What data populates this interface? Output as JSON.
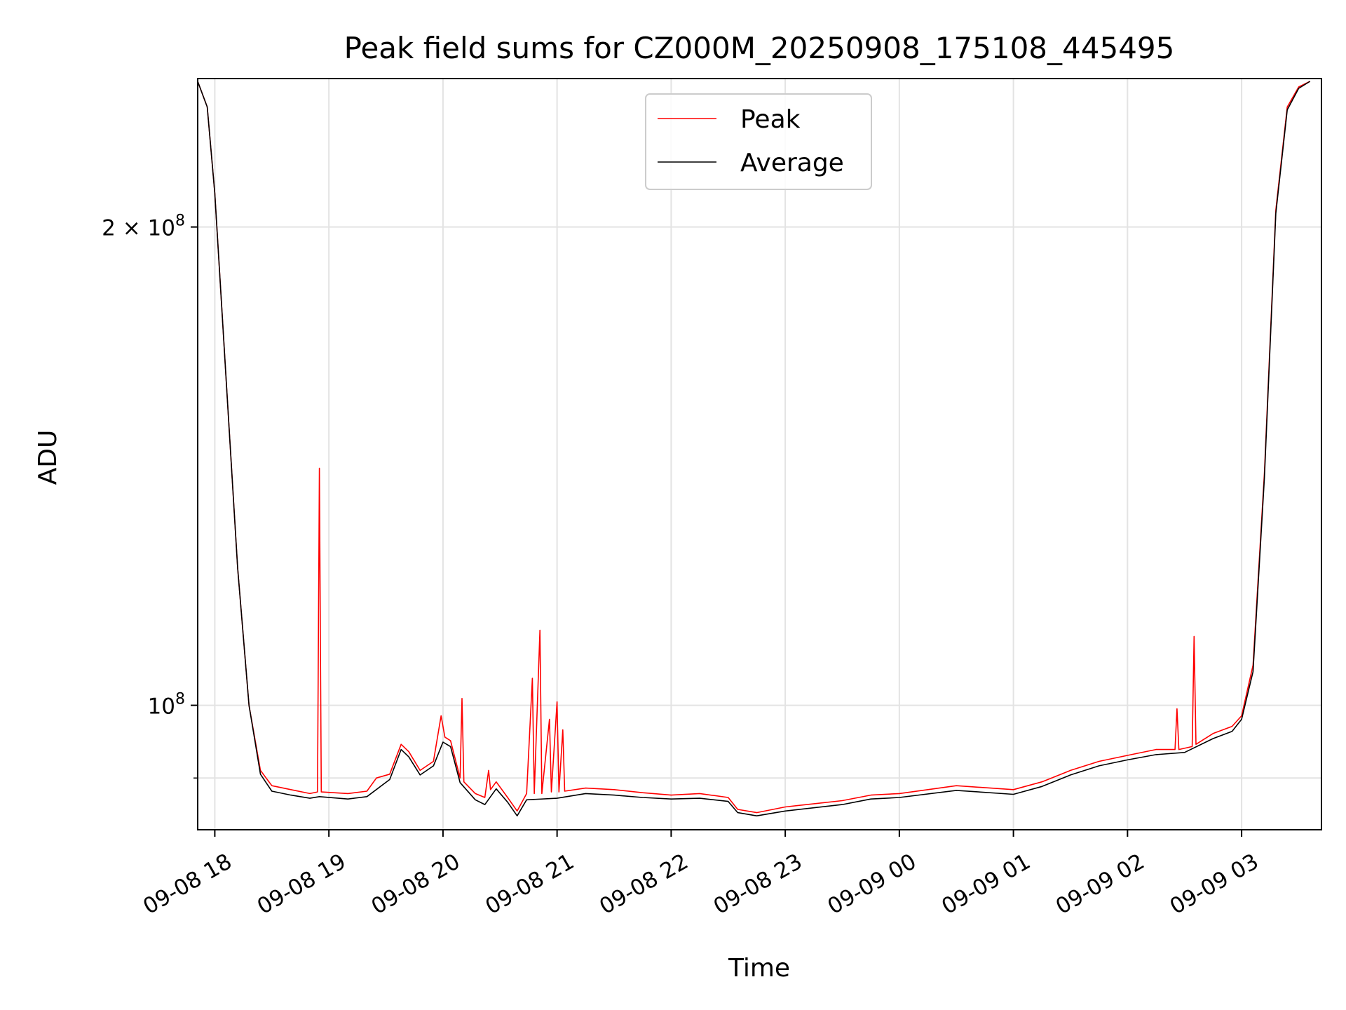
{
  "chart_data": {
    "type": "line",
    "title": "Peak field sums for CZ000M_20250908_175108_445495",
    "xlabel": "Time",
    "ylabel": "ADU",
    "y_scale": "log",
    "x_range": [
      "2025-09-08 17:51",
      "2025-09-09 03:42"
    ],
    "ylim": [
      83500000,
      248000000
    ],
    "grid": true,
    "legend_position": "top-center",
    "x_ticks": [
      {
        "t": "2025-09-08 18:00",
        "label": "09-08 18"
      },
      {
        "t": "2025-09-08 19:00",
        "label": "09-08 19"
      },
      {
        "t": "2025-09-08 20:00",
        "label": "09-08 20"
      },
      {
        "t": "2025-09-08 21:00",
        "label": "09-08 21"
      },
      {
        "t": "2025-09-08 22:00",
        "label": "09-08 22"
      },
      {
        "t": "2025-09-08 23:00",
        "label": "09-08 23"
      },
      {
        "t": "2025-09-09 00:00",
        "label": "09-09 00"
      },
      {
        "t": "2025-09-09 01:00",
        "label": "09-09 01"
      },
      {
        "t": "2025-09-09 02:00",
        "label": "09-09 02"
      },
      {
        "t": "2025-09-09 03:00",
        "label": "09-09 03"
      }
    ],
    "y_ticks": [
      {
        "value": 200000000,
        "label": "2 × 10",
        "exp": "8"
      },
      {
        "value": 100000000,
        "label": "10",
        "exp": "8"
      }
    ],
    "y_minor_ticks": [
      90000000
    ],
    "series": [
      {
        "name": "Peak",
        "color": "#ff0000",
        "points": [
          [
            "2025-09-08 17:51",
            247000000
          ],
          [
            "2025-09-08 17:56",
            238000000
          ],
          [
            "2025-09-08 18:00",
            210000000
          ],
          [
            "2025-09-08 18:06",
            160000000
          ],
          [
            "2025-09-08 18:12",
            122000000
          ],
          [
            "2025-09-08 18:18",
            100000000
          ],
          [
            "2025-09-08 18:24",
            91000000
          ],
          [
            "2025-09-08 18:30",
            89000000
          ],
          [
            "2025-09-08 18:40",
            88500000
          ],
          [
            "2025-09-08 18:50",
            88000000
          ],
          [
            "2025-09-08 18:54",
            88200000
          ],
          [
            "2025-09-08 18:55",
            141000000
          ],
          [
            "2025-09-08 18:56",
            88200000
          ],
          [
            "2025-09-08 19:10",
            88000000
          ],
          [
            "2025-09-08 19:20",
            88300000
          ],
          [
            "2025-09-08 19:25",
            90000000
          ],
          [
            "2025-09-08 19:32",
            90500000
          ],
          [
            "2025-09-08 19:38",
            94500000
          ],
          [
            "2025-09-08 19:42",
            93500000
          ],
          [
            "2025-09-08 19:48",
            91000000
          ],
          [
            "2025-09-08 19:55",
            92200000
          ],
          [
            "2025-09-08 19:59",
            98500000
          ],
          [
            "2025-09-08 20:01",
            95500000
          ],
          [
            "2025-09-08 20:04",
            95000000
          ],
          [
            "2025-09-08 20:09",
            90000000
          ],
          [
            "2025-09-08 20:10",
            101000000
          ],
          [
            "2025-09-08 20:11",
            89500000
          ],
          [
            "2025-09-08 20:17",
            88000000
          ],
          [
            "2025-09-08 20:22",
            87500000
          ],
          [
            "2025-09-08 20:24",
            91000000
          ],
          [
            "2025-09-08 20:25",
            88500000
          ],
          [
            "2025-09-08 20:28",
            89500000
          ],
          [
            "2025-09-08 20:34",
            87500000
          ],
          [
            "2025-09-08 20:39",
            85800000
          ],
          [
            "2025-09-08 20:44",
            88000000
          ],
          [
            "2025-09-08 20:47",
            104000000
          ],
          [
            "2025-09-08 20:48",
            88000000
          ],
          [
            "2025-09-08 20:51",
            111500000
          ],
          [
            "2025-09-08 20:52",
            88000000
          ],
          [
            "2025-09-08 20:56",
            98000000
          ],
          [
            "2025-09-08 20:57",
            88200000
          ],
          [
            "2025-09-08 21:00",
            100500000
          ],
          [
            "2025-09-08 21:01",
            88200000
          ],
          [
            "2025-09-08 21:03",
            96500000
          ],
          [
            "2025-09-08 21:04",
            88300000
          ],
          [
            "2025-09-08 21:15",
            88700000
          ],
          [
            "2025-09-08 21:30",
            88500000
          ],
          [
            "2025-09-08 21:45",
            88100000
          ],
          [
            "2025-09-08 22:00",
            87800000
          ],
          [
            "2025-09-08 22:15",
            88000000
          ],
          [
            "2025-09-08 22:30",
            87500000
          ],
          [
            "2025-09-08 22:35",
            86000000
          ],
          [
            "2025-09-08 22:45",
            85600000
          ],
          [
            "2025-09-08 23:00",
            86300000
          ],
          [
            "2025-09-08 23:30",
            87100000
          ],
          [
            "2025-09-08 23:45",
            87800000
          ],
          [
            "2025-09-09 00:00",
            88000000
          ],
          [
            "2025-09-09 00:30",
            89000000
          ],
          [
            "2025-09-09 01:00",
            88500000
          ],
          [
            "2025-09-09 01:15",
            89500000
          ],
          [
            "2025-09-09 01:30",
            91000000
          ],
          [
            "2025-09-09 01:45",
            92200000
          ],
          [
            "2025-09-09 02:00",
            93000000
          ],
          [
            "2025-09-09 02:15",
            93800000
          ],
          [
            "2025-09-09 02:25",
            93800000
          ],
          [
            "2025-09-09 02:26",
            99500000
          ],
          [
            "2025-09-09 02:27",
            93800000
          ],
          [
            "2025-09-09 02:34",
            94200000
          ],
          [
            "2025-09-09 02:35",
            110500000
          ],
          [
            "2025-09-09 02:36",
            94500000
          ],
          [
            "2025-09-09 02:45",
            96000000
          ],
          [
            "2025-09-09 02:55",
            97000000
          ],
          [
            "2025-09-09 03:00",
            98500000
          ],
          [
            "2025-09-09 03:06",
            106000000
          ],
          [
            "2025-09-09 03:12",
            140000000
          ],
          [
            "2025-09-09 03:18",
            205000000
          ],
          [
            "2025-09-09 03:24",
            238000000
          ],
          [
            "2025-09-09 03:30",
            245000000
          ],
          [
            "2025-09-09 03:36",
            247000000
          ]
        ]
      },
      {
        "name": "Average",
        "color": "#000000",
        "points": [
          [
            "2025-09-08 17:51",
            247000000
          ],
          [
            "2025-09-08 17:56",
            238000000
          ],
          [
            "2025-09-08 18:00",
            210000000
          ],
          [
            "2025-09-08 18:06",
            160000000
          ],
          [
            "2025-09-08 18:12",
            122000000
          ],
          [
            "2025-09-08 18:18",
            100000000
          ],
          [
            "2025-09-08 18:24",
            90500000
          ],
          [
            "2025-09-08 18:30",
            88300000
          ],
          [
            "2025-09-08 18:40",
            87800000
          ],
          [
            "2025-09-08 18:50",
            87400000
          ],
          [
            "2025-09-08 18:55",
            87600000
          ],
          [
            "2025-09-08 19:10",
            87300000
          ],
          [
            "2025-09-08 19:20",
            87600000
          ],
          [
            "2025-09-08 19:32",
            89800000
          ],
          [
            "2025-09-08 19:38",
            93800000
          ],
          [
            "2025-09-08 19:42",
            92800000
          ],
          [
            "2025-09-08 19:48",
            90400000
          ],
          [
            "2025-09-08 19:55",
            91600000
          ],
          [
            "2025-09-08 20:00",
            94800000
          ],
          [
            "2025-09-08 20:04",
            94200000
          ],
          [
            "2025-09-08 20:09",
            89400000
          ],
          [
            "2025-09-08 20:17",
            87200000
          ],
          [
            "2025-09-08 20:22",
            86600000
          ],
          [
            "2025-09-08 20:28",
            88600000
          ],
          [
            "2025-09-08 20:34",
            86900000
          ],
          [
            "2025-09-08 20:39",
            85200000
          ],
          [
            "2025-09-08 20:44",
            87200000
          ],
          [
            "2025-09-08 21:00",
            87400000
          ],
          [
            "2025-09-08 21:15",
            88000000
          ],
          [
            "2025-09-08 21:30",
            87800000
          ],
          [
            "2025-09-08 21:45",
            87500000
          ],
          [
            "2025-09-08 22:00",
            87300000
          ],
          [
            "2025-09-08 22:15",
            87400000
          ],
          [
            "2025-09-08 22:30",
            87000000
          ],
          [
            "2025-09-08 22:35",
            85600000
          ],
          [
            "2025-09-08 22:45",
            85200000
          ],
          [
            "2025-09-08 23:00",
            85800000
          ],
          [
            "2025-09-08 23:30",
            86600000
          ],
          [
            "2025-09-08 23:45",
            87300000
          ],
          [
            "2025-09-09 00:00",
            87500000
          ],
          [
            "2025-09-09 00:30",
            88400000
          ],
          [
            "2025-09-09 01:00",
            87900000
          ],
          [
            "2025-09-09 01:15",
            88900000
          ],
          [
            "2025-09-09 01:30",
            90400000
          ],
          [
            "2025-09-09 01:45",
            91600000
          ],
          [
            "2025-09-09 02:00",
            92400000
          ],
          [
            "2025-09-09 02:15",
            93100000
          ],
          [
            "2025-09-09 02:30",
            93400000
          ],
          [
            "2025-09-09 02:45",
            95300000
          ],
          [
            "2025-09-09 02:55",
            96300000
          ],
          [
            "2025-09-09 03:00",
            98000000
          ],
          [
            "2025-09-09 03:06",
            105000000
          ],
          [
            "2025-09-09 03:12",
            139000000
          ],
          [
            "2025-09-09 03:18",
            204000000
          ],
          [
            "2025-09-09 03:24",
            237000000
          ],
          [
            "2025-09-09 03:30",
            244500000
          ],
          [
            "2025-09-09 03:36",
            247000000
          ]
        ]
      }
    ]
  }
}
